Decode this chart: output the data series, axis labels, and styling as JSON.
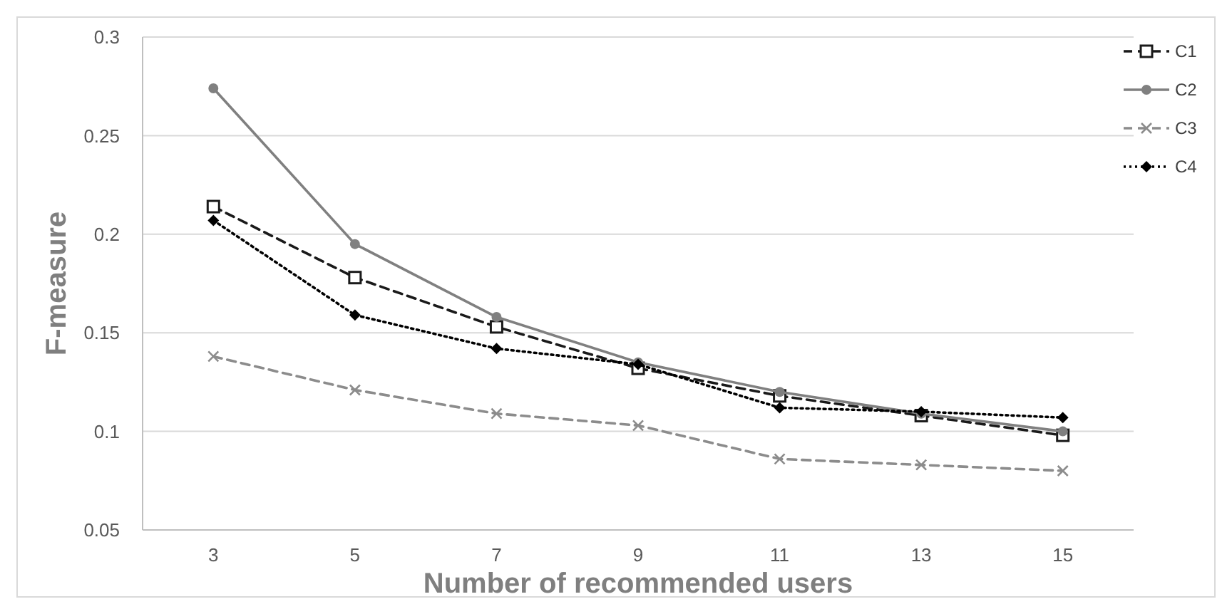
{
  "chart_data": {
    "type": "line",
    "xlabel": "Number of recommended users",
    "ylabel": "F-measure",
    "categories": [
      "3",
      "5",
      "7",
      "9",
      "11",
      "13",
      "15"
    ],
    "ylim": [
      0.05,
      0.3
    ],
    "yticks": [
      0.05,
      0.1,
      0.15,
      0.2,
      0.25,
      0.3
    ],
    "grid": "y",
    "legend": "right",
    "series": [
      {
        "name": "C1",
        "color": "#1a1a1a",
        "marker": "square",
        "line_style": "dashed",
        "values": [
          0.214,
          0.178,
          0.153,
          0.132,
          0.118,
          0.108,
          0.098
        ]
      },
      {
        "name": "C2",
        "color": "#808080",
        "marker": "circle",
        "line_style": "solid",
        "values": [
          0.274,
          0.195,
          0.158,
          0.135,
          0.12,
          0.109,
          0.1
        ]
      },
      {
        "name": "C3",
        "color": "#8c8c8c",
        "marker": "cross",
        "line_style": "dashed",
        "values": [
          0.138,
          0.121,
          0.109,
          0.103,
          0.086,
          0.083,
          0.08
        ]
      },
      {
        "name": "C4",
        "color": "#000000",
        "marker": "diamond",
        "line_style": "dotted",
        "values": [
          0.207,
          0.159,
          0.142,
          0.134,
          0.112,
          0.11,
          0.107
        ]
      }
    ]
  }
}
